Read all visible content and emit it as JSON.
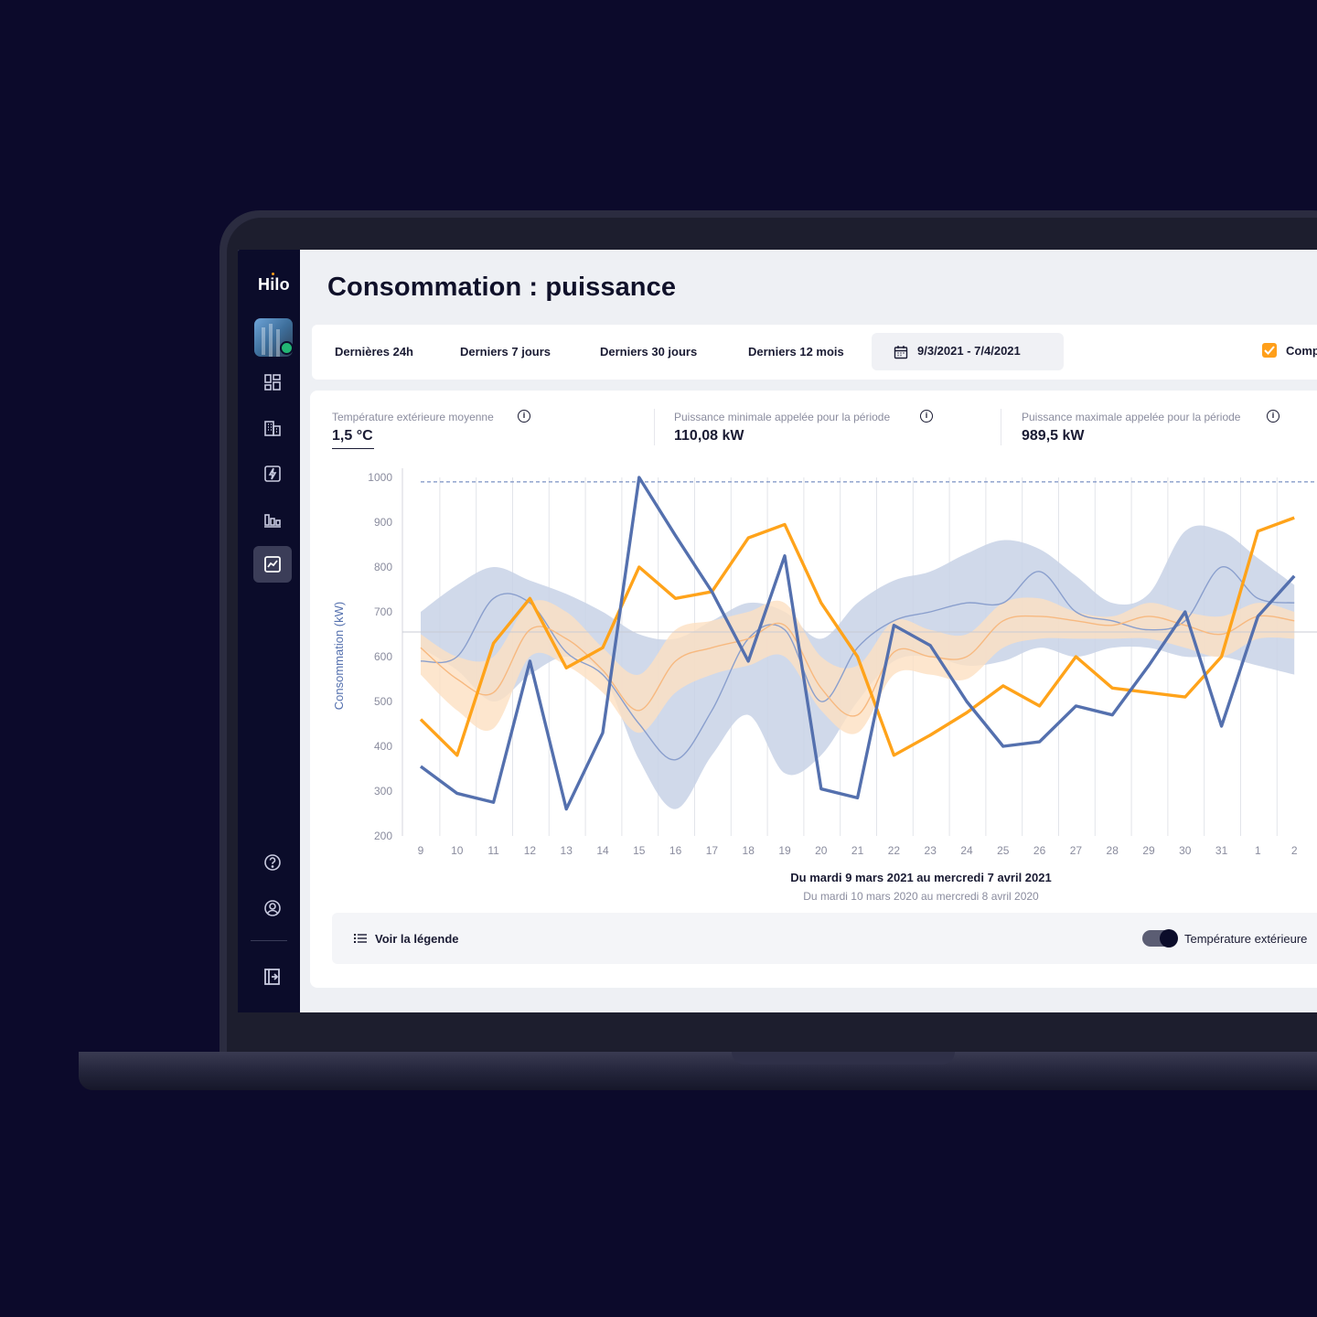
{
  "app": {
    "logo": "Hilo"
  },
  "page": {
    "title": "Consommation : puissance"
  },
  "filters": {
    "items": [
      "Dernières 24h",
      "Derniers 7 jours",
      "Derniers 30 jours",
      "Derniers 12 mois"
    ],
    "date_range": "9/3/2021 - 7/4/2021",
    "compare_label": "Comp"
  },
  "stats": [
    {
      "label": "Température extérieure moyenne",
      "value": "1,5 °C"
    },
    {
      "label": "Puissance minimale appelée pour la période",
      "value": "110,08 kW"
    },
    {
      "label": "Puissance maximale appelée pour la période",
      "value": "989,5 kW"
    }
  ],
  "sidebar": {
    "icons": [
      "dashboard-icon",
      "buildings-icon",
      "power-icon",
      "bar-chart-icon",
      "trend-chart-icon",
      "help-icon",
      "account-icon",
      "logout-icon"
    ],
    "active": "trend-chart-icon"
  },
  "legend": {
    "button_label": "Voir la légende",
    "toggle_label": "Température extérieure",
    "toggle_on": true
  },
  "colors": {
    "current": "#5470ae",
    "previous": "#ffa31a",
    "current_band": "#c8d2e6",
    "previous_band": "#fde0c2",
    "sidebar": "#0b0c2a"
  },
  "chart_data": {
    "type": "line",
    "ylabel": "Consommation (kW)",
    "ylim": [
      200,
      1000
    ],
    "yticks": [
      1000,
      900,
      800,
      700,
      600,
      500,
      400,
      300,
      200
    ],
    "x": [
      "9",
      "10",
      "11",
      "12",
      "13",
      "14",
      "15",
      "16",
      "17",
      "18",
      "19",
      "20",
      "21",
      "22",
      "23",
      "24",
      "25",
      "26",
      "27",
      "28",
      "29",
      "30",
      "31",
      "1",
      "2"
    ],
    "subtitle": "Du mardi 9 mars 2021 au mercredi 7 avril 2021",
    "subtitle2": "Du mardi 10 mars 2020 au mercredi 8 avril 2020",
    "max_line": 990,
    "avg_line": 655,
    "series": [
      {
        "name": "",
        "color": "#5470ae",
        "values": [
          355,
          295,
          275,
          590,
          260,
          430,
          1000,
          870,
          745,
          590,
          825,
          305,
          285,
          670,
          625,
          500,
          400,
          410,
          490,
          470,
          580,
          700,
          445,
          690,
          780
        ]
      },
      {
        "name": "",
        "color": "#ffa31a",
        "values": [
          460,
          380,
          630,
          730,
          575,
          620,
          800,
          730,
          745,
          865,
          895,
          720,
          600,
          380,
          425,
          475,
          535,
          490,
          600,
          530,
          520,
          510,
          600,
          880,
          910
        ]
      },
      {
        "name": "",
        "color": "#8a9fcd",
        "values": [
          590,
          600,
          730,
          720,
          610,
          560,
          450,
          370,
          480,
          640,
          660,
          500,
          620,
          680,
          700,
          720,
          720,
          790,
          700,
          680,
          660,
          680,
          800,
          730,
          720
        ]
      },
      {
        "name": "",
        "color": "#f7b980",
        "values": [
          620,
          550,
          520,
          660,
          640,
          570,
          480,
          590,
          620,
          640,
          670,
          530,
          470,
          610,
          600,
          600,
          680,
          690,
          680,
          670,
          690,
          670,
          650,
          690,
          680
        ]
      }
    ],
    "bands": [
      {
        "name": "",
        "upper": [
          700,
          760,
          800,
          770,
          740,
          700,
          650,
          640,
          680,
          720,
          700,
          640,
          720,
          770,
          790,
          830,
          860,
          840,
          780,
          720,
          740,
          880,
          880,
          820,
          760
        ],
        "lower": [
          620,
          570,
          500,
          560,
          600,
          560,
          370,
          260,
          380,
          470,
          340,
          380,
          500,
          590,
          600,
          580,
          590,
          620,
          600,
          620,
          620,
          600,
          600,
          580,
          560
        ]
      },
      {
        "name": "",
        "upper": [
          650,
          600,
          600,
          720,
          700,
          620,
          560,
          660,
          680,
          700,
          720,
          600,
          580,
          680,
          660,
          650,
          720,
          730,
          700,
          690,
          720,
          700,
          690,
          720,
          700
        ],
        "lower": [
          560,
          480,
          440,
          600,
          580,
          520,
          430,
          520,
          560,
          580,
          600,
          480,
          430,
          560,
          560,
          550,
          620,
          640,
          640,
          640,
          640,
          620,
          600,
          640,
          640
        ]
      }
    ]
  }
}
